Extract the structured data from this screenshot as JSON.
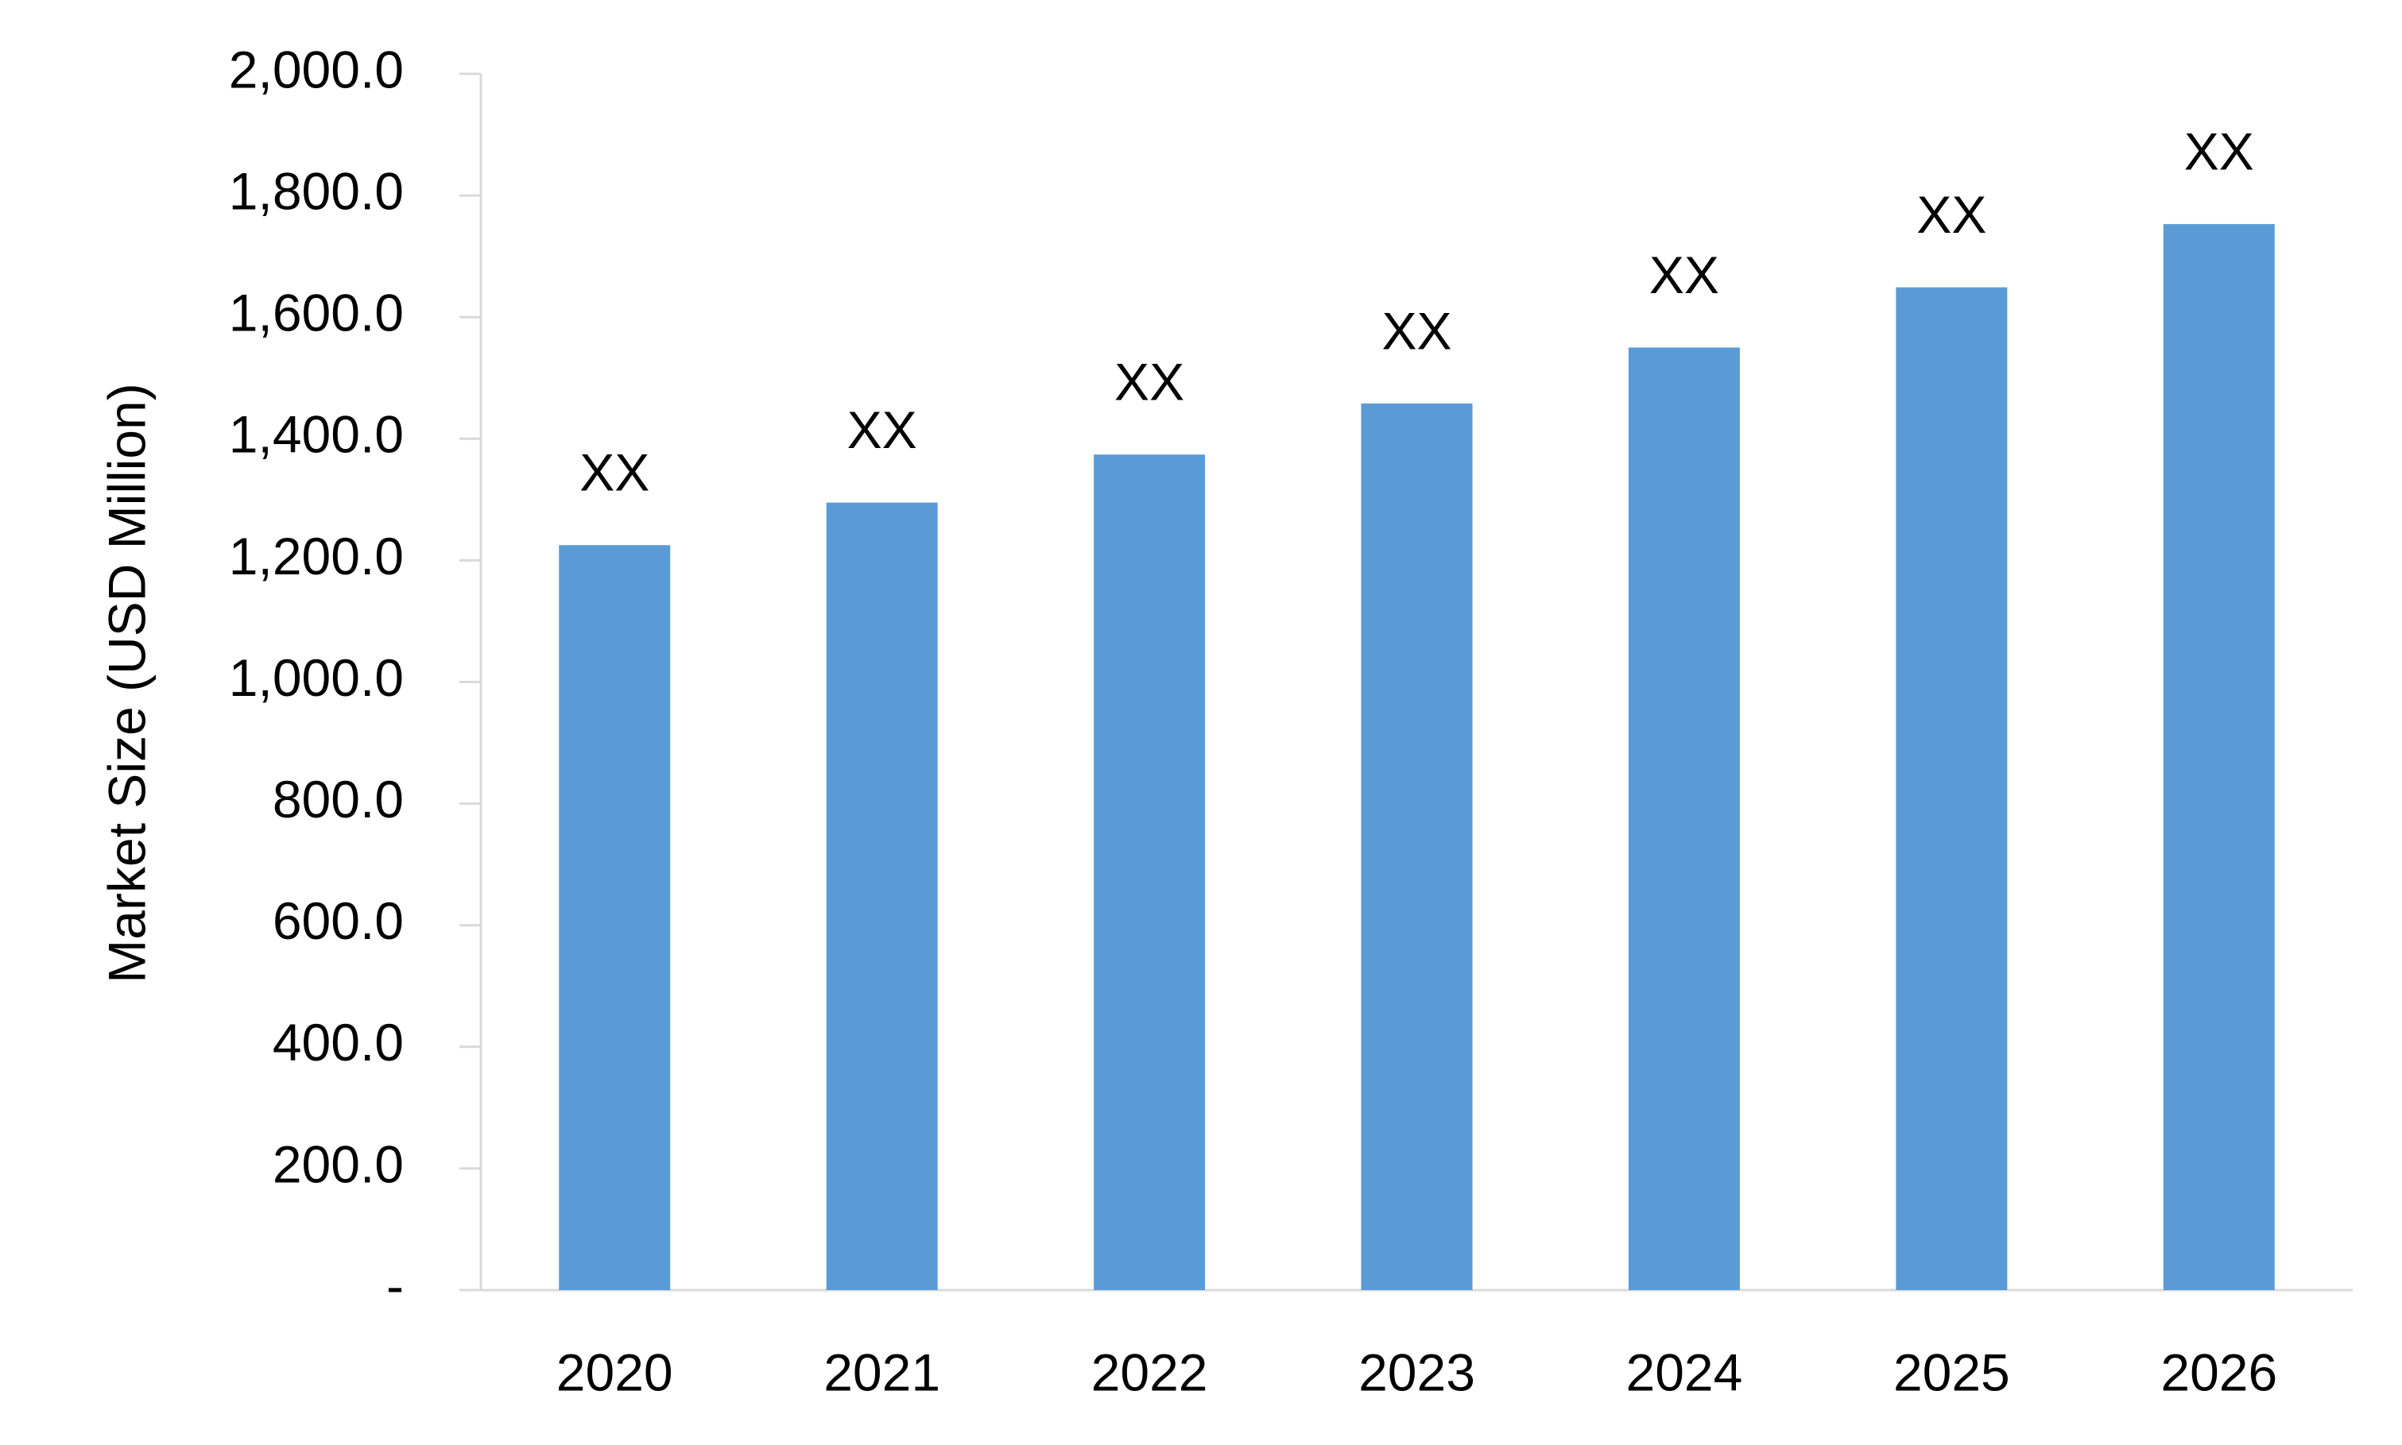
{
  "chart_data": {
    "type": "bar",
    "y_label": "Market Size (USD Million)",
    "categories": [
      "2020",
      "2021",
      "2022",
      "2023",
      "2024",
      "2025",
      "2026"
    ],
    "values": [
      1225,
      1295,
      1374,
      1458,
      1550,
      1649,
      1753
    ],
    "value_labels": [
      "XX",
      "XX",
      "XX",
      "XX",
      "XX",
      "XX",
      "XX"
    ],
    "color": "#5b9bd5",
    "ylim": [
      0,
      2000
    ],
    "yticks": [
      {
        "value": 0,
        "label": "-"
      },
      {
        "value": 200,
        "label": "200.0"
      },
      {
        "value": 400,
        "label": "400.0"
      },
      {
        "value": 600,
        "label": "600.0"
      },
      {
        "value": 800,
        "label": "800.0"
      },
      {
        "value": 1000,
        "label": "1,000.0"
      },
      {
        "value": 1200,
        "label": "1,200.0"
      },
      {
        "value": 1400,
        "label": "1,400.0"
      },
      {
        "value": 1600,
        "label": "1,600.0"
      },
      {
        "value": 1800,
        "label": "1,800.0"
      },
      {
        "value": 2000,
        "label": "2,000.0"
      }
    ],
    "grid": false
  }
}
